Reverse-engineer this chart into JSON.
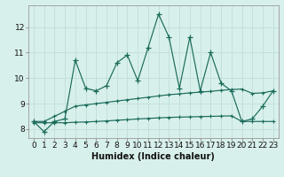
{
  "xlabel": "Humidex (Indice chaleur)",
  "bg_color": "#d8f0ec",
  "grid_color": "#c4e0da",
  "line_color": "#1a6b5a",
  "x": [
    0,
    1,
    2,
    3,
    4,
    5,
    6,
    7,
    8,
    9,
    10,
    11,
    12,
    13,
    14,
    15,
    16,
    17,
    18,
    19,
    20,
    21,
    22,
    23
  ],
  "y_main": [
    8.3,
    7.9,
    8.3,
    8.4,
    10.7,
    9.6,
    9.5,
    9.7,
    10.6,
    10.9,
    9.9,
    11.2,
    12.5,
    11.6,
    9.6,
    11.6,
    9.5,
    11.0,
    9.8,
    9.5,
    8.3,
    8.4,
    8.9,
    9.5
  ],
  "y_upper": [
    8.3,
    8.3,
    8.5,
    8.7,
    8.9,
    8.95,
    9.0,
    9.05,
    9.1,
    9.15,
    9.2,
    9.25,
    9.3,
    9.35,
    9.38,
    9.42,
    9.45,
    9.48,
    9.52,
    9.55,
    9.57,
    9.4,
    9.42,
    9.5
  ],
  "y_lower": [
    8.25,
    8.25,
    8.25,
    8.25,
    8.27,
    8.28,
    8.3,
    8.32,
    8.35,
    8.37,
    8.4,
    8.42,
    8.44,
    8.46,
    8.47,
    8.48,
    8.49,
    8.5,
    8.51,
    8.52,
    8.3,
    8.3,
    8.3,
    8.3
  ],
  "xlim": [
    -0.5,
    23.5
  ],
  "ylim": [
    7.65,
    12.85
  ],
  "yticks": [
    8,
    9,
    10,
    11,
    12
  ],
  "xticks": [
    0,
    1,
    2,
    3,
    4,
    5,
    6,
    7,
    8,
    9,
    10,
    11,
    12,
    13,
    14,
    15,
    16,
    17,
    18,
    19,
    20,
    21,
    22,
    23
  ],
  "xlabel_fontsize": 7,
  "tick_fontsize": 6.5
}
